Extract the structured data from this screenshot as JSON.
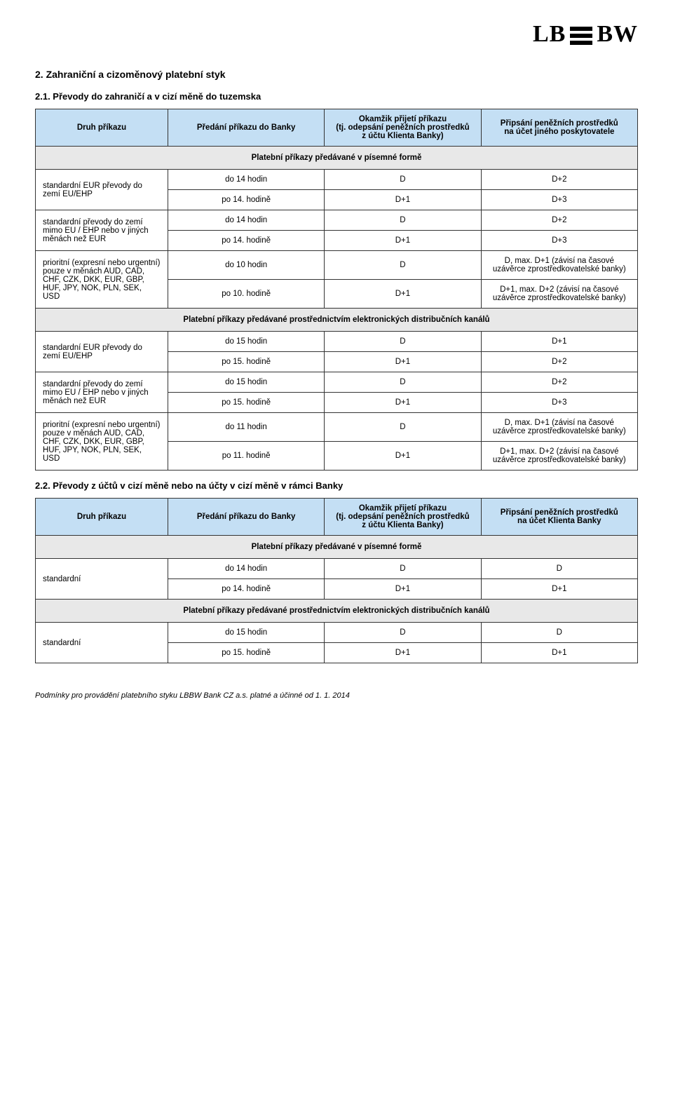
{
  "logo": {
    "left": "LB",
    "right": "BW"
  },
  "section_title": "2.  Zahraniční a cizoměnový platební styk",
  "sub1_title": "2.1.  Převody do zahraničí a v cizí měně do tuzemska",
  "sub2_title": "2.2.  Převody z účtů v cizí měně nebo na účty v cizí měně v rámci Banky",
  "headers": {
    "druh": "Druh příkazu",
    "predani": "Předání příkazu do Banky",
    "okamzik": "Okamžik přijetí příkazu\n(tj. odepsání peněžních prostředků\nz účtu Klienta Banky)",
    "pripsani_jiny": "Připsání peněžních prostředků\nna účet jiného poskytovatele",
    "pripsani_banka": "Připsání peněžních prostředků\nna účet Klienta Banky"
  },
  "banners": {
    "pisemne": "Platební příkazy předávané v písemné formě",
    "elektronicky": "Platební příkazy předávané prostřednictvím elektronických distribučních kanálů"
  },
  "labels": {
    "std_eur": "standardní EUR převody do zemí EU/EHP",
    "std_mimo": "standardní převody do zemí mimo EU / EHP nebo v jiných měnách než EUR",
    "prioritni": "prioritní (expresní nebo urgentní) pouze v měnách AUD, CAD, CHF, CZK, DKK, EUR, GBP, HUF, JPY, NOK, PLN, SEK, USD",
    "standardni": "standardní"
  },
  "t1": {
    "r1": {
      "b": "do 14 hodin",
      "c": "D",
      "d": "D+2"
    },
    "r2": {
      "b": "po 14. hodině",
      "c": "D+1",
      "d": "D+3"
    },
    "r3": {
      "b": "do 14 hodin",
      "c": "D",
      "d": "D+2"
    },
    "r4": {
      "b": "po 14. hodině",
      "c": "D+1",
      "d": "D+3"
    },
    "r5": {
      "b": "do 10 hodin",
      "c": "D",
      "d": "D, max. D+1 (závisí na časové uzávěrce zprostředkovatelské banky)"
    },
    "r6": {
      "b": "po 10. hodině",
      "c": "D+1",
      "d": "D+1, max. D+2 (závisí na časové uzávěrce zprostředkovatelské banky)"
    },
    "r7": {
      "b": "do 15 hodin",
      "c": "D",
      "d": "D+1"
    },
    "r8": {
      "b": "po 15. hodině",
      "c": "D+1",
      "d": "D+2"
    },
    "r9": {
      "b": "do 15 hodin",
      "c": "D",
      "d": "D+2"
    },
    "r10": {
      "b": "po 15. hodině",
      "c": "D+1",
      "d": "D+3"
    },
    "r11": {
      "b": "do 11 hodin",
      "c": "D",
      "d": "D, max. D+1 (závisí na časové uzávěrce zprostředkovatelské banky)"
    },
    "r12": {
      "b": "po 11. hodině",
      "c": "D+1",
      "d": "D+1, max. D+2 (závisí na časové uzávěrce zprostředkovatelské banky)"
    }
  },
  "t2": {
    "r1": {
      "b": "do 14 hodin",
      "c": "D",
      "d": "D"
    },
    "r2": {
      "b": "po 14. hodině",
      "c": "D+1",
      "d": "D+1"
    },
    "r3": {
      "b": "do 15 hodin",
      "c": "D",
      "d": "D"
    },
    "r4": {
      "b": "po 15. hodině",
      "c": "D+1",
      "d": "D+1"
    }
  },
  "footer_text": "Podmínky pro provádění platebního styku LBBW Bank CZ a.s. platné a účinné od 1. 1. 2014"
}
